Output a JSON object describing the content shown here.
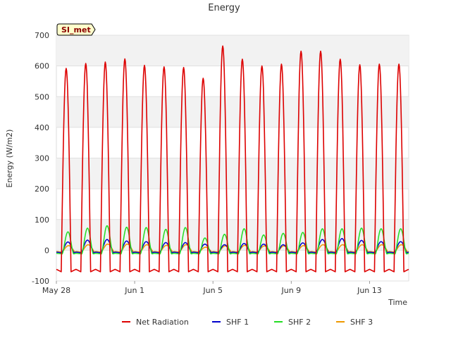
{
  "chart_data": {
    "type": "line",
    "title": "Energy",
    "xlabel": "Time",
    "ylabel": "Energy (W/m2)",
    "site_label": "SI_met",
    "ylim": [
      -100,
      700
    ],
    "yticks": [
      -100,
      0,
      100,
      200,
      300,
      400,
      500,
      600,
      700
    ],
    "xlim": [
      "2021-05-28",
      "2021-06-15"
    ],
    "xticks": [
      {
        "date": "2021-05-28",
        "label": "May 28"
      },
      {
        "date": "2021-06-01",
        "label": "Jun 1"
      },
      {
        "date": "2021-06-05",
        "label": "Jun 5"
      },
      {
        "date": "2021-06-09",
        "label": "Jun 9"
      },
      {
        "date": "2021-06-13",
        "label": "Jun 13"
      }
    ],
    "grid": true,
    "legend_position": "bottom",
    "daily_peaks": {
      "dates": [
        "2021-05-28",
        "2021-05-29",
        "2021-05-30",
        "2021-05-31",
        "2021-06-01",
        "2021-06-02",
        "2021-06-03",
        "2021-06-04",
        "2021-06-05",
        "2021-06-06",
        "2021-06-07",
        "2021-06-08",
        "2021-06-09",
        "2021-06-10",
        "2021-06-11",
        "2021-06-12",
        "2021-06-13",
        "2021-06-14"
      ],
      "series": [
        {
          "name": "Net Radiation",
          "color": "#dd0000",
          "values": [
            592,
            608,
            613,
            623,
            602,
            597,
            595,
            560,
            665,
            622,
            600,
            606,
            648,
            648,
            622,
            604,
            606,
            606
          ]
        },
        {
          "name": "SHF 1",
          "color": "#0000cc",
          "values": [
            27,
            33,
            35,
            30,
            28,
            25,
            25,
            20,
            18,
            22,
            20,
            18,
            24,
            35,
            38,
            32,
            28,
            28
          ]
        },
        {
          "name": "SHF 2",
          "color": "#22dd22",
          "values": [
            60,
            72,
            80,
            75,
            74,
            68,
            74,
            40,
            52,
            70,
            50,
            55,
            58,
            70,
            70,
            72,
            70,
            70
          ]
        },
        {
          "name": "SHF 3",
          "color": "#ee9900",
          "values": [
            15,
            18,
            20,
            20,
            18,
            16,
            18,
            10,
            14,
            16,
            14,
            14,
            15,
            18,
            18,
            18,
            18,
            18
          ]
        }
      ]
    },
    "nightly_lows": {
      "Net Radiation": -70,
      "SHF 1": -8,
      "SHF 2": -12,
      "SHF 3": -6
    }
  }
}
